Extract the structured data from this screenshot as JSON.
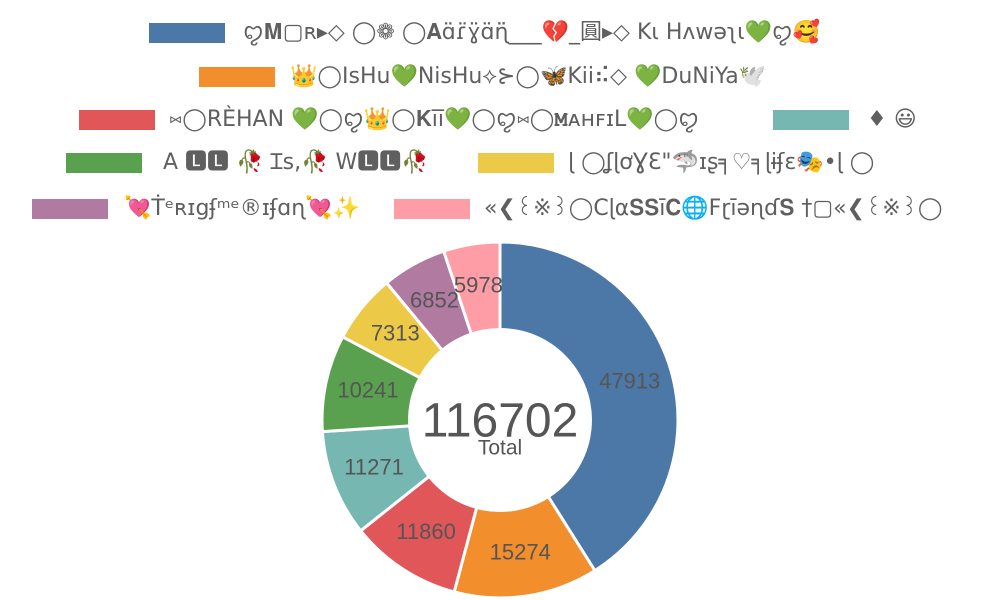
{
  "chart_data": {
    "type": "pie",
    "variant": "donut",
    "legend_position": "top",
    "center": {
      "value": "116702",
      "label": "Total"
    },
    "series": [
      {
        "name": "ꨄ𝐌▢ʀ▸◇ ◯❁ ◯𝐀ɑ̈ɾ̈ɣ̈ɑ̈ɳ̈̈___💔_圓▸◇ Kι Hʌwəʅɩ💚ꨄ🥰",
        "value": 47913,
        "color": "#4c78a8"
      },
      {
        "name": "👑◯IsHu💚NisHu⟡⊱◯🦋Kii⠮◇ 💚DuNiYa🕊️",
        "value": 15274,
        "color": "#f28e2b"
      },
      {
        "name": "⑅◯RÈHAN 💚◯ꨄ👑◯𝐊īī💚◯ꨄ⑅◯𝐌ᴀʜꜰɪL💚◯ꨄ",
        "value": 11860,
        "color": "#e15759"
      },
      {
        "name": "♦ 😃",
        "value": 11271,
        "color": "#76b7b2"
      },
      {
        "name": "A 🅻🅻 🥀 Ɪs,🥀 W🅻🅻🥀",
        "value": 10241,
        "color": "#59a14f"
      },
      {
        "name": "ɭ ◯ʆɭơƔƐ\"🦈ɪʂ╕♡╕ɭɨʄɛ🎭•ɭ ◯",
        "value": 7313,
        "color": "#edc948"
      },
      {
        "name": "💘Ṫᵉʀɪgʄᵐᵉ®ɪʄɑɳ💘✨",
        "value": 6852,
        "color": "#b07aa1"
      },
      {
        "name": "«❮꒰※꒱◯Cɭα𝐒𝐒ī𝐂🌐Fɽīəɳɗ𝐒 †▢«❮꒰※꒱◯",
        "value": 5978,
        "color": "#ff9da7"
      }
    ]
  }
}
